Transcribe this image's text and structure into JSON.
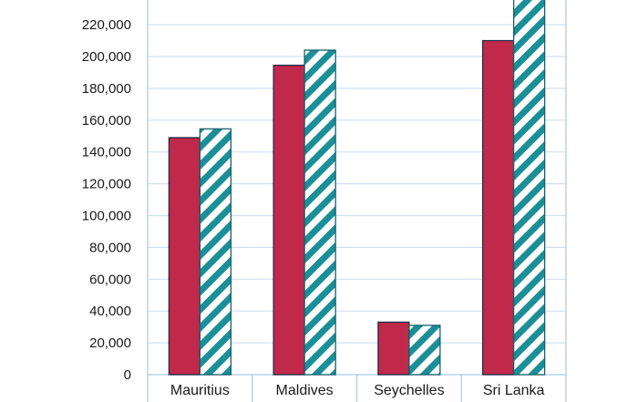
{
  "chart_data": {
    "type": "bar",
    "title": "",
    "xlabel": "",
    "ylabel": "",
    "categories": [
      "Mauritius",
      "Maldives",
      "Seychelles",
      "Sri Lanka"
    ],
    "series": [
      {
        "values": [
          149000,
          194500,
          33000,
          210000
        ],
        "color": "#c0294a",
        "pattern": "solid"
      },
      {
        "values": [
          154500,
          204000,
          31000,
          238000
        ],
        "color": "#1b8f98",
        "pattern": "diagonal-stripes"
      }
    ],
    "ylim": [
      0,
      232000
    ],
    "yticks": [
      0,
      20000,
      40000,
      60000,
      80000,
      100000,
      120000,
      140000,
      160000,
      180000,
      200000,
      220000
    ],
    "ytick_labels": [
      "0",
      "20,000",
      "40,000",
      "60,000",
      "80,000",
      "100,000",
      "120,000",
      "140,000",
      "160,000",
      "180,000",
      "200,000",
      "220,000"
    ],
    "grid": true,
    "gridline_color": "#cfe0f0",
    "frame_color": "#b8d4ec"
  }
}
